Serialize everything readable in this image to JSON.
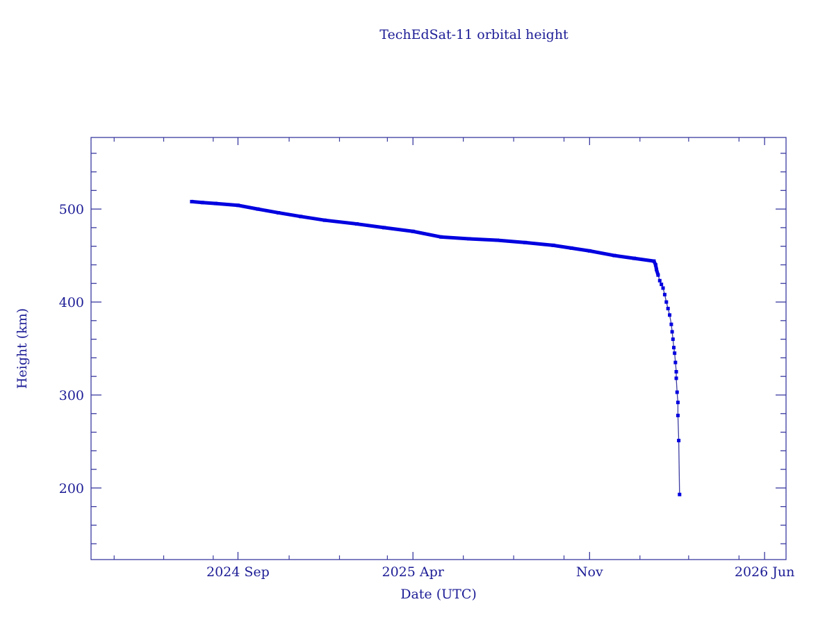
{
  "chart_data": {
    "type": "line",
    "title": "TechEdSat-11 orbital height",
    "xlabel": "Date (UTC)",
    "ylabel": "Height (km)",
    "xlim": [
      "2024-03-07",
      "2026-06-27"
    ],
    "ylim": [
      123,
      577
    ],
    "x_ticks": [
      {
        "date": "2024-09-01",
        "label": "2024 Sep"
      },
      {
        "date": "2025-04-01",
        "label": "2025 Apr"
      },
      {
        "date": "2025-11-01",
        "label": "Nov"
      },
      {
        "date": "2026-06-01",
        "label": "2026 Jun"
      }
    ],
    "x_minor_ticks": [
      "2024-04-04",
      "2024-06-03",
      "2024-08-02",
      "2024-11-02",
      "2025-01-02",
      "2025-03-01",
      "2025-06-01",
      "2025-08-01",
      "2025-10-01",
      "2026-01-01",
      "2026-03-01",
      "2026-05-01"
    ],
    "y_ticks": [
      200,
      300,
      400,
      500
    ],
    "y_minor_step": 20,
    "grid": false,
    "colors": {
      "axes": "#3a3aa0",
      "text": "#1c1c96",
      "series": "#0000e0"
    },
    "series": [
      {
        "x": [
          "2024-07-07",
          "2024-07-20",
          "2024-08-05",
          "2024-09-01",
          "2024-09-25",
          "2024-10-20",
          "2024-11-16",
          "2024-12-15",
          "2025-01-23",
          "2025-02-25",
          "2025-04-01",
          "2025-05-05",
          "2025-06-08",
          "2025-07-12",
          "2025-08-15",
          "2025-09-18",
          "2025-10-10",
          "2025-11-01",
          "2025-12-01",
          "2025-12-25",
          "2026-01-18",
          "2026-01-20",
          "2026-01-21",
          "2026-01-23",
          "2026-01-25",
          "2026-01-27",
          "2026-01-29",
          "2026-01-31",
          "2026-02-02",
          "2026-02-04",
          "2026-02-06",
          "2026-02-08",
          "2026-02-09",
          "2026-02-10",
          "2026-02-11",
          "2026-02-12",
          "2026-02-13",
          "2026-02-14",
          "2026-02-14",
          "2026-02-15",
          "2026-02-16",
          "2026-02-16",
          "2026-02-17",
          "2026-02-18"
        ],
        "y": [
          508,
          507,
          506,
          504,
          500,
          496,
          492,
          488,
          484,
          480,
          476,
          470,
          468,
          466.5,
          464,
          461,
          458,
          455,
          450,
          447,
          444,
          440,
          435,
          429,
          423,
          419,
          415,
          408,
          400,
          393,
          386,
          376,
          368,
          360,
          351,
          345,
          335,
          325,
          318,
          303,
          292,
          278,
          251,
          193
        ]
      }
    ]
  }
}
